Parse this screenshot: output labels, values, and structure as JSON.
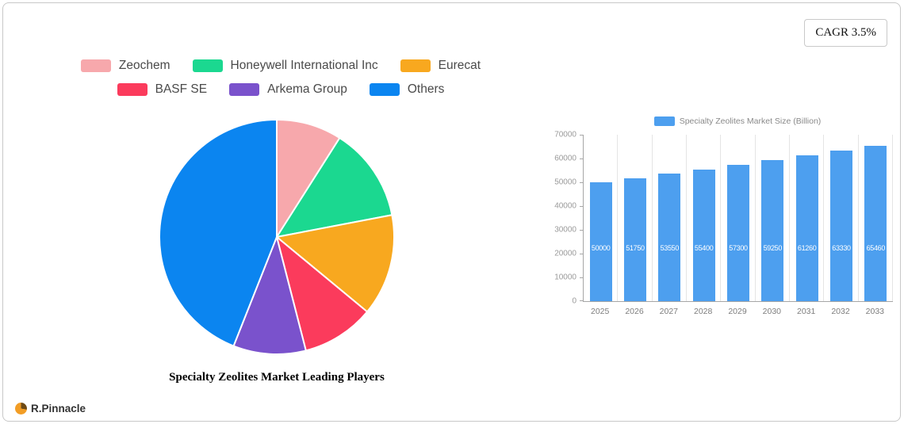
{
  "card": {
    "cagr_label": "CAGR 3.5%"
  },
  "branding": {
    "logo_text": "R.Pinnacle"
  },
  "chart_data": [
    {
      "type": "pie",
      "title": "Specialty Zeolites Market Leading Players",
      "labels": [
        "Zeochem",
        "Honeywell International Inc",
        "Eurecat",
        "BASF SE",
        "Arkema Group",
        "Others"
      ],
      "values": [
        9,
        13,
        14,
        10,
        10,
        44
      ],
      "colors": [
        "#f7a8ac",
        "#1bd890",
        "#f8a81f",
        "#fb3b5c",
        "#7a52cc",
        "#0b85f0"
      ],
      "start_angle_deg": 0,
      "direction": "clockwise",
      "legend_position": "top"
    },
    {
      "type": "bar",
      "legend_label": "Specialty Zeolites Market Size (Billion)",
      "categories": [
        "2025",
        "2026",
        "2027",
        "2028",
        "2029",
        "2030",
        "2031",
        "2032",
        "2033"
      ],
      "values": [
        50000,
        51750,
        53550,
        55400,
        57300,
        59250,
        61260,
        63330,
        65460
      ],
      "ylim": [
        0,
        70000
      ],
      "ytick_step": 10000,
      "bar_color": "#4d9fef",
      "value_label_color": "#ffffff",
      "grid": "vertical"
    }
  ]
}
